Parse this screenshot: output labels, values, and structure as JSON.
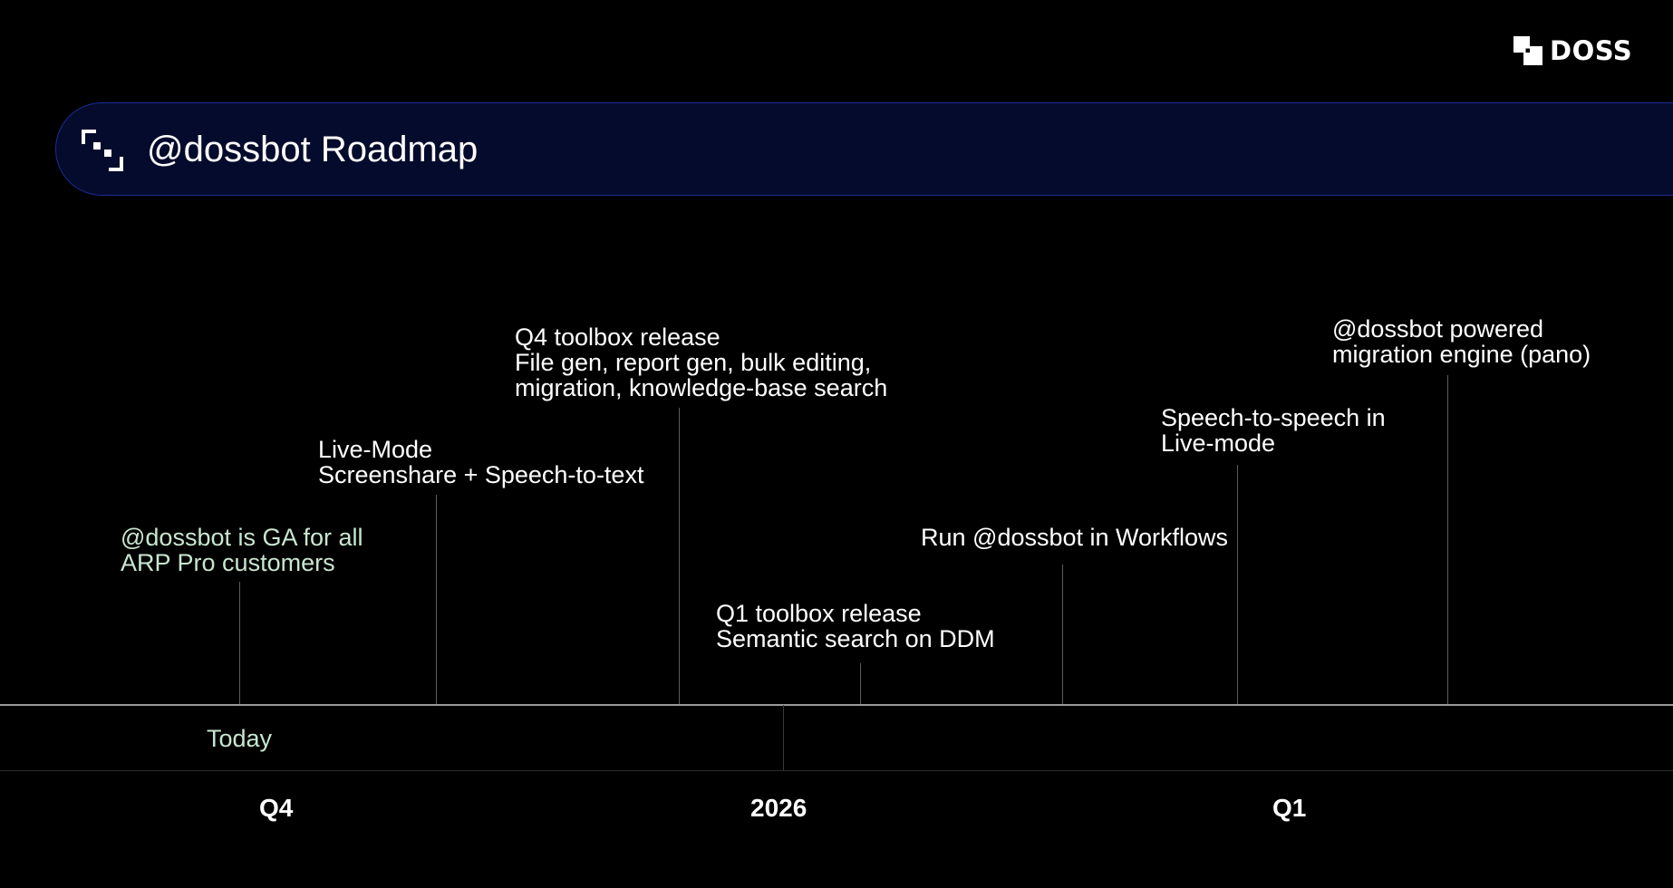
{
  "brand": {
    "logo_text": "DOSS",
    "logo_icon": "doss-logo-icon"
  },
  "header": {
    "title": "@dossbot Roadmap",
    "icon": "bracket-frame-icon",
    "banner_color": "#050b2c",
    "banner_border": "#1b2d9a"
  },
  "milestones": [
    {
      "lines": [
        "@dossbot is GA for all",
        "ARP Pro customers"
      ],
      "highlight": true
    },
    {
      "lines": [
        "Live-Mode",
        "Screenshare + Speech-to-text"
      ],
      "highlight": false
    },
    {
      "lines": [
        "Q4 toolbox release",
        "File gen, report gen, bulk editing,",
        "migration, knowledge-base search"
      ],
      "highlight": false
    },
    {
      "lines": [
        "Q1 toolbox release",
        "Semantic search on DDM"
      ],
      "highlight": false
    },
    {
      "lines": [
        "Run @dossbot in Workflows"
      ],
      "highlight": false
    },
    {
      "lines": [
        "Speech-to-speech in",
        "Live-mode"
      ],
      "highlight": false
    },
    {
      "lines": [
        "@dossbot powered",
        "migration engine (pano)"
      ],
      "highlight": false
    }
  ],
  "timeline": {
    "today_label": "Today",
    "periods": [
      "Q4",
      "2026",
      "Q1"
    ]
  },
  "colors": {
    "highlight_text": "#c8e6cf",
    "background": "#000000"
  }
}
